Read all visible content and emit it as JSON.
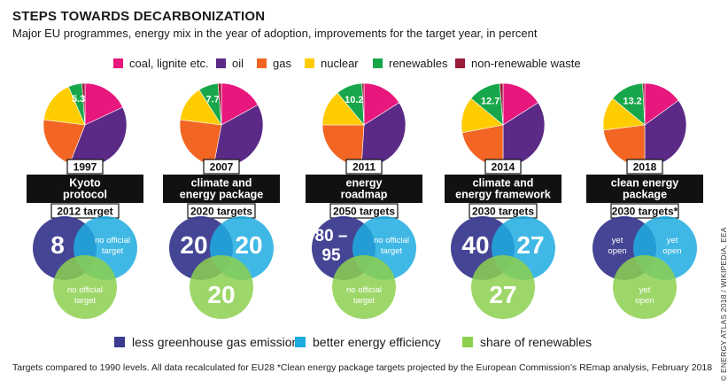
{
  "title": "STEPS TOWARDS DECARBONIZATION",
  "subtitle": "Major EU programmes, energy mix in the year of adoption, improvements for the target year, in percent",
  "colors": {
    "coal": "#e8177d",
    "oil": "#5b2a86",
    "gas": "#f26522",
    "nuclear": "#ffcc00",
    "renewables": "#17a74a",
    "waste": "#9b1b3a",
    "ghg": "#3b3b8f",
    "efficiency": "#1eabe0",
    "share": "#8dd04f"
  },
  "mix_legend": [
    {
      "key": "coal",
      "label": "coal, lignite etc."
    },
    {
      "key": "oil",
      "label": "oil"
    },
    {
      "key": "gas",
      "label": "gas"
    },
    {
      "key": "nuclear",
      "label": "nuclear"
    },
    {
      "key": "renewables",
      "label": "renewables"
    },
    {
      "key": "waste",
      "label": "non-renewable waste"
    }
  ],
  "target_legend": [
    {
      "key": "ghg",
      "label": "less greenhouse gas emissions"
    },
    {
      "key": "efficiency",
      "label": "better energy efficiency"
    },
    {
      "key": "share",
      "label": "share of renewables"
    }
  ],
  "chart_data": {
    "type": "pie",
    "programmes": [
      {
        "year": "1997",
        "name": "Kyoto protocol",
        "target_label": "2012 target",
        "renewables_label": "5.3",
        "mix": {
          "coal": 18,
          "oil": 38,
          "gas": 21,
          "nuclear": 16.5,
          "renewables": 5.3,
          "waste": 1.2
        },
        "targets": {
          "ghg": "8",
          "efficiency": "no official target",
          "share": "no official target"
        }
      },
      {
        "year": "2007",
        "name": "climate and energy package",
        "target_label": "2020 targets",
        "renewables_label": "7.7",
        "mix": {
          "coal": 17,
          "oil": 36,
          "gas": 24,
          "nuclear": 14,
          "renewables": 7.7,
          "waste": 1.3
        },
        "targets": {
          "ghg": "20",
          "efficiency": "20",
          "share": "20"
        }
      },
      {
        "year": "2011",
        "name": "energy roadmap",
        "target_label": "2050 targets",
        "renewables_label": "10.2",
        "mix": {
          "coal": 16,
          "oil": 35,
          "gas": 24,
          "nuclear": 14,
          "renewables": 10.2,
          "waste": 0.8
        },
        "targets": {
          "ghg": "80 – 95",
          "efficiency": "no official target",
          "share": "no official target"
        }
      },
      {
        "year": "2014",
        "name": "climate and energy framework",
        "target_label": "2030 targets",
        "renewables_label": "12.7",
        "mix": {
          "coal": 16,
          "oil": 34,
          "gas": 22,
          "nuclear": 14,
          "renewables": 12.7,
          "waste": 1.3
        },
        "targets": {
          "ghg": "40",
          "efficiency": "27",
          "share": "27"
        }
      },
      {
        "year": "2018",
        "name": "clean energy package",
        "target_label": "2030 targets*",
        "renewables_label": "13.2",
        "mix": {
          "coal": 15,
          "oil": 35,
          "gas": 23,
          "nuclear": 13,
          "renewables": 13.2,
          "waste": 0.8
        },
        "targets": {
          "ghg": "yet open",
          "efficiency": "yet open",
          "share": "yet open"
        }
      }
    ]
  },
  "footnote": "Targets compared to 1990 levels. All data recalculated for EU28   *Clean energy package targets projected by the European Commission’s REmap analysis, February 2018",
  "credit": "© ENERGY ATLAS 2018 / WIKIPEDIA, EEA"
}
